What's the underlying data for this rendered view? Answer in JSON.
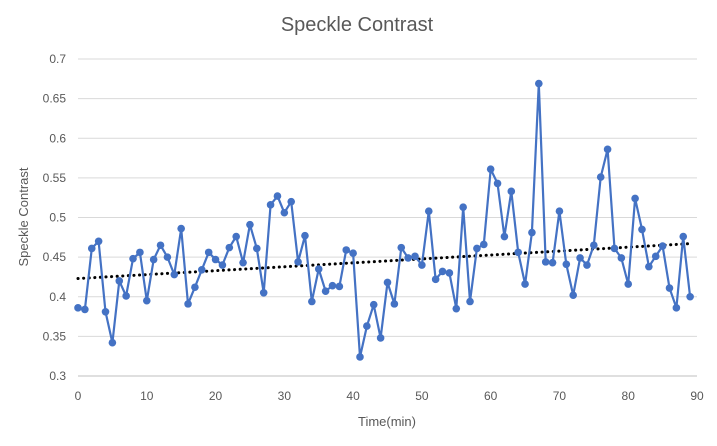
{
  "chart_data": {
    "type": "line",
    "title": "Speckle Contrast",
    "xlabel": "Time(min)",
    "ylabel": "Speckle Contrast",
    "xlim": [
      0,
      90
    ],
    "ylim": [
      0.3,
      0.7
    ],
    "x_ticks": [
      "0",
      "10",
      "20",
      "30",
      "40",
      "50",
      "60",
      "70",
      "80",
      "90"
    ],
    "y_ticks": [
      "0.3",
      "0.35",
      "0.4",
      "0.45",
      "0.5",
      "0.55",
      "0.6",
      "0.65",
      "0.7"
    ],
    "grid": "horizontal",
    "legend": "none",
    "series": [
      {
        "marker": "circle",
        "color": "#4472c4",
        "x": [
          0,
          1,
          2,
          3,
          4,
          5,
          6,
          7,
          8,
          9,
          10,
          11,
          12,
          13,
          14,
          15,
          16,
          17,
          18,
          19,
          20,
          21,
          22,
          23,
          24,
          25,
          26,
          27,
          28,
          29,
          30,
          31,
          32,
          33,
          34,
          35,
          36,
          37,
          38,
          39,
          40,
          41,
          42,
          43,
          44,
          45,
          46,
          47,
          48,
          49,
          50,
          51,
          52,
          53,
          54,
          55,
          56,
          57,
          58,
          59,
          60,
          61,
          62,
          63,
          64,
          65,
          66,
          67,
          68,
          69,
          70,
          71,
          72,
          73,
          74,
          75,
          76,
          77,
          78,
          79,
          80,
          81,
          82,
          83,
          84,
          85,
          86,
          87,
          88,
          89
        ],
        "values": [
          0.386,
          0.384,
          0.461,
          0.47,
          0.381,
          0.342,
          0.42,
          0.401,
          0.448,
          0.456,
          0.395,
          0.447,
          0.465,
          0.45,
          0.428,
          0.486,
          0.391,
          0.412,
          0.434,
          0.456,
          0.447,
          0.44,
          0.462,
          0.476,
          0.443,
          0.491,
          0.461,
          0.405,
          0.516,
          0.527,
          0.506,
          0.52,
          0.444,
          0.477,
          0.394,
          0.435,
          0.407,
          0.414,
          0.413,
          0.459,
          0.455,
          0.324,
          0.363,
          0.39,
          0.348,
          0.418,
          0.391,
          0.462,
          0.449,
          0.451,
          0.44,
          0.508,
          0.422,
          0.432,
          0.43,
          0.385,
          0.513,
          0.394,
          0.461,
          0.466,
          0.561,
          0.543,
          0.476,
          0.533,
          0.456,
          0.416,
          0.481,
          0.669,
          0.444,
          0.443,
          0.508,
          0.441,
          0.402,
          0.449,
          0.44,
          0.465,
          0.551,
          0.586,
          0.461,
          0.449,
          0.416,
          0.524,
          0.485,
          0.438,
          0.451,
          0.464,
          0.411,
          0.386,
          0.476,
          0.4
        ]
      }
    ],
    "trendline": {
      "type": "linear",
      "style": "dotted",
      "color": "#000000",
      "start": [
        0,
        0.423
      ],
      "end": [
        89,
        0.467
      ]
    }
  }
}
